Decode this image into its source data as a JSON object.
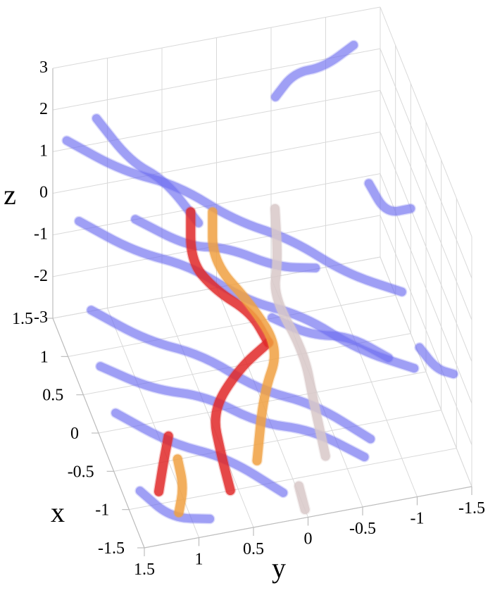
{
  "chart_data": {
    "type": "3d-line",
    "xlabel": "x",
    "ylabel": "y",
    "zlabel": "z",
    "xlim": [
      -1.5,
      1.5
    ],
    "ylim": [
      -1.5,
      1.5
    ],
    "zlim": [
      -3,
      3
    ],
    "grid": true,
    "x_ticks": [
      "1.5",
      "1",
      "0.5",
      "0",
      "-0.5",
      "-1",
      "-1.5"
    ],
    "y_ticks": [
      "1.5",
      "1",
      "0.5",
      "0",
      "-0.5",
      "-1",
      "-1.5"
    ],
    "z_ticks": [
      "3",
      "2",
      "1",
      "0",
      "-1",
      "-2",
      "-3"
    ],
    "colors": {
      "blue": "#6e6ef0",
      "red": "#e02828",
      "orange": "#f0a040",
      "pale": "#d8c8c8"
    },
    "series": [
      {
        "color": "blue",
        "points": [
          [
            1.3,
            -1.2,
            2.6
          ],
          [
            1.2,
            -0.9,
            2.4
          ],
          [
            1.1,
            -0.6,
            2.6
          ],
          [
            1.0,
            -0.4,
            2.3
          ]
        ]
      },
      {
        "color": "blue",
        "points": [
          [
            1.4,
            1.4,
            1.4
          ],
          [
            1.0,
            1.0,
            1.2
          ],
          [
            0.6,
            0.6,
            1.4
          ],
          [
            0.2,
            0.2,
            1.1
          ],
          [
            -0.2,
            -0.2,
            1.2
          ],
          [
            -0.6,
            -0.6,
            0.9
          ],
          [
            -1.0,
            -1.0,
            1.0
          ]
        ]
      },
      {
        "color": "blue",
        "points": [
          [
            1.5,
            1.1,
            1.6
          ],
          [
            1.1,
            0.9,
            1.2
          ],
          [
            0.7,
            0.7,
            1.4
          ],
          [
            0.3,
            0.5,
            1.0
          ]
        ]
      },
      {
        "color": "blue",
        "points": [
          [
            1.0,
            1.4,
            0.2
          ],
          [
            0.6,
            1.0,
            0.0
          ],
          [
            0.2,
            0.6,
            0.2
          ],
          [
            -0.2,
            0.2,
            -0.1
          ],
          [
            -0.6,
            -0.2,
            0.1
          ],
          [
            -1.0,
            -0.6,
            -0.2
          ],
          [
            -1.4,
            -1.0,
            -0.1
          ]
        ]
      },
      {
        "color": "blue",
        "points": [
          [
            0.6,
            1.4,
            -1.2
          ],
          [
            0.2,
            1.0,
            -1.4
          ],
          [
            -0.2,
            0.6,
            -1.2
          ],
          [
            -0.6,
            0.2,
            -1.5
          ],
          [
            -1.0,
            -0.2,
            -1.3
          ],
          [
            -1.4,
            -0.6,
            -1.6
          ]
        ]
      },
      {
        "color": "blue",
        "points": [
          [
            1.3,
            0.8,
            -0.6
          ],
          [
            1.0,
            0.4,
            -0.9
          ],
          [
            0.8,
            0.1,
            -0.7
          ],
          [
            0.6,
            -0.3,
            -1.0
          ],
          [
            0.4,
            -0.6,
            -0.8
          ]
        ]
      },
      {
        "color": "blue",
        "points": [
          [
            -0.2,
            1.4,
            -2.2
          ],
          [
            -0.6,
            1.0,
            -2.4
          ],
          [
            -1.0,
            0.6,
            -2.2
          ],
          [
            -1.4,
            0.2,
            -2.5
          ]
        ]
      },
      {
        "color": "blue",
        "points": [
          [
            0.3,
            1.4,
            -2.0
          ],
          [
            0.0,
            1.0,
            -2.2
          ],
          [
            -0.3,
            0.6,
            -2.0
          ],
          [
            -0.6,
            0.2,
            -2.3
          ],
          [
            -0.9,
            -0.2,
            -2.1
          ],
          [
            -1.2,
            -0.6,
            -2.4
          ]
        ]
      },
      {
        "color": "blue",
        "points": [
          [
            -1.0,
            1.4,
            -2.6
          ],
          [
            -1.3,
            1.2,
            -2.8
          ],
          [
            -1.5,
            0.9,
            -2.6
          ]
        ]
      },
      {
        "color": "blue",
        "points": [
          [
            0.4,
            -0.2,
            -1.8
          ],
          [
            0.2,
            -0.5,
            -2.0
          ],
          [
            0.0,
            -0.8,
            -1.8
          ],
          [
            -0.2,
            -1.1,
            -2.1
          ]
        ]
      },
      {
        "color": "blue",
        "points": [
          [
            -0.5,
            -1.3,
            -1.4
          ],
          [
            -0.7,
            -1.4,
            -1.6
          ],
          [
            -0.9,
            -1.5,
            -1.4
          ]
        ]
      },
      {
        "color": "blue",
        "points": [
          [
            0.8,
            -1.2,
            0.2
          ],
          [
            0.6,
            -1.3,
            -0.2
          ],
          [
            0.5,
            -1.5,
            0.0
          ]
        ]
      },
      {
        "color": "red",
        "points": [
          [
            0.2,
            0.6,
            1.5
          ],
          [
            0.2,
            0.6,
            0.3
          ],
          [
            0.1,
            0.4,
            -0.3
          ],
          [
            0.0,
            0.1,
            -0.8
          ],
          [
            -0.2,
            0.0,
            -1.2
          ]
        ]
      },
      {
        "color": "red",
        "points": [
          [
            -0.2,
            0.0,
            -1.2
          ],
          [
            -0.3,
            0.3,
            -1.5
          ],
          [
            -0.5,
            0.6,
            -2.0
          ],
          [
            -0.8,
            0.6,
            -2.5
          ],
          [
            -1.1,
            0.6,
            -2.8
          ]
        ]
      },
      {
        "color": "red",
        "points": [
          [
            -0.5,
            1.0,
            -2.4
          ],
          [
            -0.7,
            1.1,
            -2.6
          ],
          [
            -0.9,
            1.2,
            -2.9
          ]
        ]
      },
      {
        "color": "orange",
        "points": [
          [
            0.2,
            0.4,
            1.4
          ],
          [
            0.2,
            0.4,
            0.2
          ],
          [
            0.0,
            0.1,
            -0.6
          ],
          [
            -0.2,
            -0.1,
            -1.4
          ],
          [
            -0.4,
            0.1,
            -2.0
          ],
          [
            -0.9,
            0.3,
            -2.6
          ]
        ]
      },
      {
        "color": "orange",
        "points": [
          [
            -0.8,
            1.0,
            -2.4
          ],
          [
            -1.0,
            1.0,
            -2.7
          ],
          [
            -1.2,
            1.1,
            -2.9
          ]
        ]
      },
      {
        "color": "pale",
        "points": [
          [
            0.3,
            -0.2,
            1.0
          ],
          [
            0.2,
            -0.2,
            -0.1
          ],
          [
            0.0,
            -0.1,
            -0.5
          ],
          [
            -0.3,
            -0.3,
            -1.4
          ],
          [
            -0.6,
            -0.3,
            -2.0
          ],
          [
            -1.0,
            -0.3,
            -2.6
          ]
        ]
      },
      {
        "color": "pale",
        "points": [
          [
            -1.2,
            0.0,
            -2.8
          ],
          [
            -1.4,
            0.0,
            -3.0
          ]
        ]
      }
    ]
  }
}
